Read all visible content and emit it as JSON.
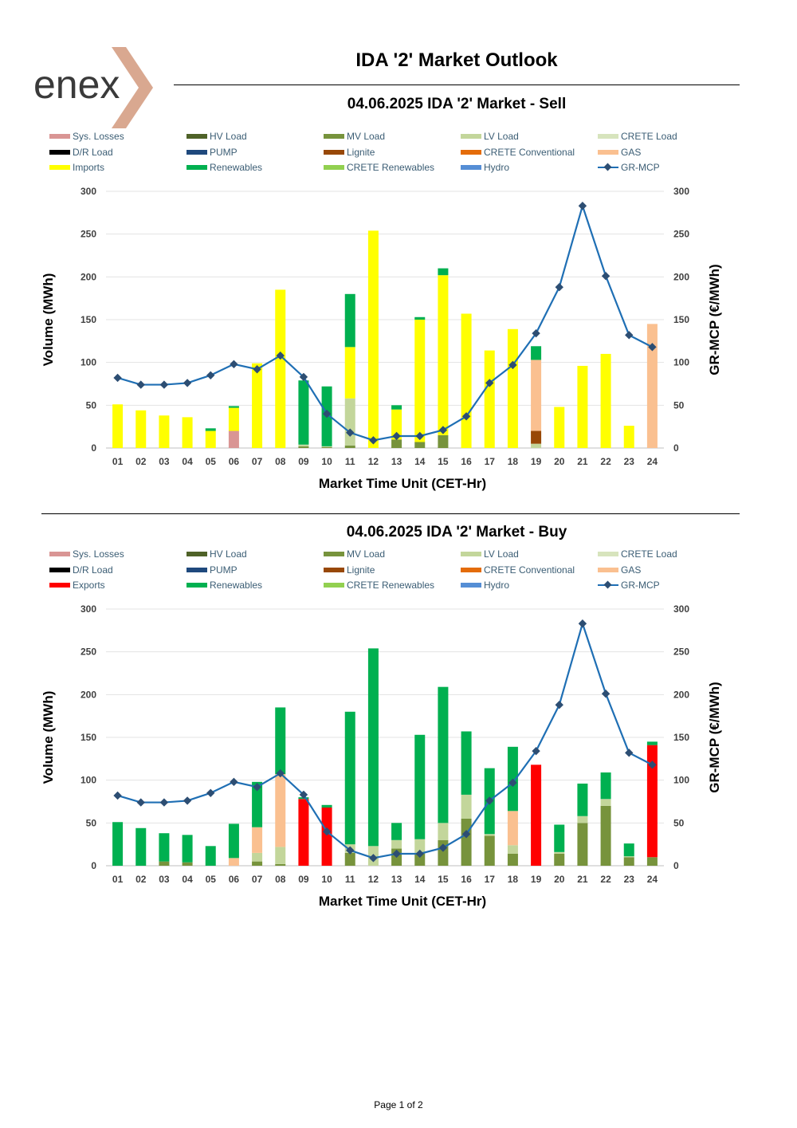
{
  "header": {
    "logo_text": "enex",
    "title": "IDA '2' Market Outlook"
  },
  "footer": {
    "page_label": "Page 1 of 2"
  },
  "colors": {
    "sys_losses": "#d99594",
    "hv_load": "#4f6228",
    "mv_load": "#77933c",
    "lv_load": "#c3d69b",
    "crete_load": "#d7e4bd",
    "dr_load": "#000000",
    "pump": "#1f497d",
    "lignite": "#984807",
    "crete_conventional": "#e46c0a",
    "gas": "#fac090",
    "imports": "#ffff00",
    "exports": "#ff0000",
    "renewables": "#00b050",
    "crete_renewables": "#92d050",
    "hydro": "#558ed5",
    "gr_mcp_line": "#1f6fb4",
    "gr_mcp_marker": "#2d4e73"
  },
  "chart_data": [
    {
      "type": "bar",
      "stacked": true,
      "title": "04.06.2025  IDA '2' Market - Sell",
      "xlabel": "Market Time Unit (CET-Hr)",
      "ylabel": "Volume (MWh)",
      "y2label": "GR-MCP (€/MWh)",
      "ylim": [
        0,
        300
      ],
      "y2lim": [
        0,
        300
      ],
      "yticks": [
        0,
        50,
        100,
        150,
        200,
        250,
        300
      ],
      "categories": [
        "01",
        "02",
        "03",
        "04",
        "05",
        "06",
        "07",
        "08",
        "09",
        "10",
        "11",
        "12",
        "13",
        "14",
        "15",
        "16",
        "17",
        "18",
        "19",
        "20",
        "21",
        "22",
        "23",
        "24"
      ],
      "legend": [
        {
          "label": "Sys. Losses",
          "color_key": "sys_losses",
          "kind": "bar"
        },
        {
          "label": "HV Load",
          "color_key": "hv_load",
          "kind": "bar"
        },
        {
          "label": "MV Load",
          "color_key": "mv_load",
          "kind": "bar"
        },
        {
          "label": "LV Load",
          "color_key": "lv_load",
          "kind": "bar"
        },
        {
          "label": "CRETE Load",
          "color_key": "crete_load",
          "kind": "bar"
        },
        {
          "label": "D/R Load",
          "color_key": "dr_load",
          "kind": "bar"
        },
        {
          "label": "PUMP",
          "color_key": "pump",
          "kind": "bar"
        },
        {
          "label": "Lignite",
          "color_key": "lignite",
          "kind": "bar"
        },
        {
          "label": "CRETE Conventional",
          "color_key": "crete_conventional",
          "kind": "bar"
        },
        {
          "label": "GAS",
          "color_key": "gas",
          "kind": "bar"
        },
        {
          "label": "Imports",
          "color_key": "imports",
          "kind": "bar"
        },
        {
          "label": "Renewables",
          "color_key": "renewables",
          "kind": "bar"
        },
        {
          "label": "CRETE Renewables",
          "color_key": "crete_renewables",
          "kind": "bar"
        },
        {
          "label": "Hydro",
          "color_key": "hydro",
          "kind": "bar"
        },
        {
          "label": "GR-MCP",
          "color_key": "gr_mcp_line",
          "kind": "line"
        }
      ],
      "series": [
        {
          "name": "Sys. Losses",
          "color_key": "sys_losses",
          "values": [
            0,
            0,
            0,
            0,
            0,
            20,
            0,
            0,
            0,
            0,
            0,
            0,
            0,
            0,
            0,
            0,
            0,
            0,
            0,
            0,
            0,
            0,
            0,
            0
          ]
        },
        {
          "name": "MV Load",
          "color_key": "mv_load",
          "values": [
            0,
            0,
            0,
            0,
            0,
            0,
            0,
            0,
            2,
            1,
            3,
            0,
            10,
            7,
            15,
            0,
            0,
            0,
            0,
            0,
            0,
            0,
            0,
            0
          ]
        },
        {
          "name": "LV Load",
          "color_key": "lv_load",
          "values": [
            0,
            0,
            0,
            0,
            0,
            0,
            0,
            0,
            2,
            1,
            55,
            0,
            0,
            0,
            0,
            0,
            0,
            0,
            5,
            0,
            0,
            0,
            0,
            0
          ]
        },
        {
          "name": "Lignite",
          "color_key": "lignite",
          "values": [
            0,
            0,
            0,
            0,
            0,
            0,
            0,
            0,
            0,
            0,
            0,
            0,
            0,
            0,
            0,
            0,
            0,
            0,
            15,
            0,
            0,
            0,
            0,
            0
          ]
        },
        {
          "name": "GAS",
          "color_key": "gas",
          "values": [
            0,
            0,
            0,
            0,
            0,
            0,
            0,
            0,
            0,
            0,
            0,
            0,
            0,
            0,
            0,
            0,
            0,
            0,
            83,
            0,
            0,
            0,
            0,
            145
          ]
        },
        {
          "name": "Imports",
          "color_key": "imports",
          "values": [
            51,
            44,
            38,
            36,
            20,
            27,
            99,
            185,
            0,
            0,
            60,
            254,
            35,
            143,
            187,
            157,
            114,
            139,
            0,
            48,
            96,
            110,
            26,
            0
          ]
        },
        {
          "name": "Renewables",
          "color_key": "renewables",
          "values": [
            0,
            0,
            0,
            0,
            3,
            2,
            0,
            0,
            75,
            70,
            62,
            0,
            5,
            3,
            8,
            0,
            0,
            0,
            16,
            0,
            0,
            0,
            0,
            0
          ]
        }
      ],
      "line": {
        "name": "GR-MCP",
        "color_key": "gr_mcp_line",
        "values": [
          82,
          74,
          74,
          76,
          85,
          98,
          92,
          108,
          83,
          40,
          18,
          9,
          14,
          14,
          21,
          37,
          76,
          97,
          134,
          188,
          283,
          201,
          132,
          118
        ]
      }
    },
    {
      "type": "bar",
      "stacked": true,
      "title": "04.06.2025  IDA '2' Market - Buy",
      "xlabel": "Market Time Unit (CET-Hr)",
      "ylabel": "Volume (MWh)",
      "y2label": "GR-MCP (€/MWh)",
      "ylim": [
        0,
        300
      ],
      "y2lim": [
        0,
        300
      ],
      "yticks": [
        0,
        50,
        100,
        150,
        200,
        250,
        300
      ],
      "categories": [
        "01",
        "02",
        "03",
        "04",
        "05",
        "06",
        "07",
        "08",
        "09",
        "10",
        "11",
        "12",
        "13",
        "14",
        "15",
        "16",
        "17",
        "18",
        "19",
        "20",
        "21",
        "22",
        "23",
        "24"
      ],
      "legend": [
        {
          "label": "Sys. Losses",
          "color_key": "sys_losses",
          "kind": "bar"
        },
        {
          "label": "HV Load",
          "color_key": "hv_load",
          "kind": "bar"
        },
        {
          "label": "MV Load",
          "color_key": "mv_load",
          "kind": "bar"
        },
        {
          "label": "LV Load",
          "color_key": "lv_load",
          "kind": "bar"
        },
        {
          "label": "CRETE Load",
          "color_key": "crete_load",
          "kind": "bar"
        },
        {
          "label": "D/R Load",
          "color_key": "dr_load",
          "kind": "bar"
        },
        {
          "label": "PUMP",
          "color_key": "pump",
          "kind": "bar"
        },
        {
          "label": "Lignite",
          "color_key": "lignite",
          "kind": "bar"
        },
        {
          "label": "CRETE Conventional",
          "color_key": "crete_conventional",
          "kind": "bar"
        },
        {
          "label": "GAS",
          "color_key": "gas",
          "kind": "bar"
        },
        {
          "label": "Exports",
          "color_key": "exports",
          "kind": "bar"
        },
        {
          "label": "Renewables",
          "color_key": "renewables",
          "kind": "bar"
        },
        {
          "label": "CRETE Renewables",
          "color_key": "crete_renewables",
          "kind": "bar"
        },
        {
          "label": "Hydro",
          "color_key": "hydro",
          "kind": "bar"
        },
        {
          "label": "GR-MCP",
          "color_key": "gr_mcp_line",
          "kind": "line"
        }
      ],
      "series": [
        {
          "name": "MV Load",
          "color_key": "mv_load",
          "values": [
            0,
            0,
            5,
            4,
            0,
            0,
            5,
            2,
            0,
            0,
            15,
            0,
            20,
            15,
            30,
            55,
            35,
            14,
            0,
            14,
            50,
            70,
            10,
            10
          ]
        },
        {
          "name": "LV Load",
          "color_key": "lv_load",
          "values": [
            0,
            0,
            0,
            0,
            0,
            0,
            10,
            20,
            0,
            0,
            10,
            23,
            10,
            16,
            20,
            28,
            2,
            10,
            0,
            2,
            8,
            8,
            1,
            0
          ]
        },
        {
          "name": "GAS",
          "color_key": "gas",
          "values": [
            0,
            0,
            0,
            0,
            0,
            9,
            30,
            85,
            0,
            0,
            0,
            0,
            0,
            0,
            0,
            0,
            0,
            40,
            0,
            0,
            0,
            0,
            0,
            0
          ]
        },
        {
          "name": "Exports",
          "color_key": "exports",
          "values": [
            0,
            0,
            0,
            0,
            0,
            0,
            0,
            0,
            78,
            68,
            0,
            0,
            0,
            0,
            0,
            0,
            0,
            0,
            118,
            0,
            0,
            0,
            0,
            131
          ]
        },
        {
          "name": "Renewables",
          "color_key": "renewables",
          "values": [
            51,
            44,
            33,
            32,
            23,
            40,
            53,
            78,
            2,
            3,
            155,
            231,
            20,
            122,
            159,
            74,
            77,
            75,
            0,
            32,
            38,
            31,
            15,
            4
          ]
        }
      ],
      "line": {
        "name": "GR-MCP",
        "color_key": "gr_mcp_line",
        "values": [
          82,
          74,
          74,
          76,
          85,
          98,
          92,
          108,
          83,
          40,
          18,
          9,
          14,
          14,
          21,
          37,
          76,
          97,
          134,
          188,
          283,
          201,
          132,
          118
        ]
      }
    }
  ]
}
